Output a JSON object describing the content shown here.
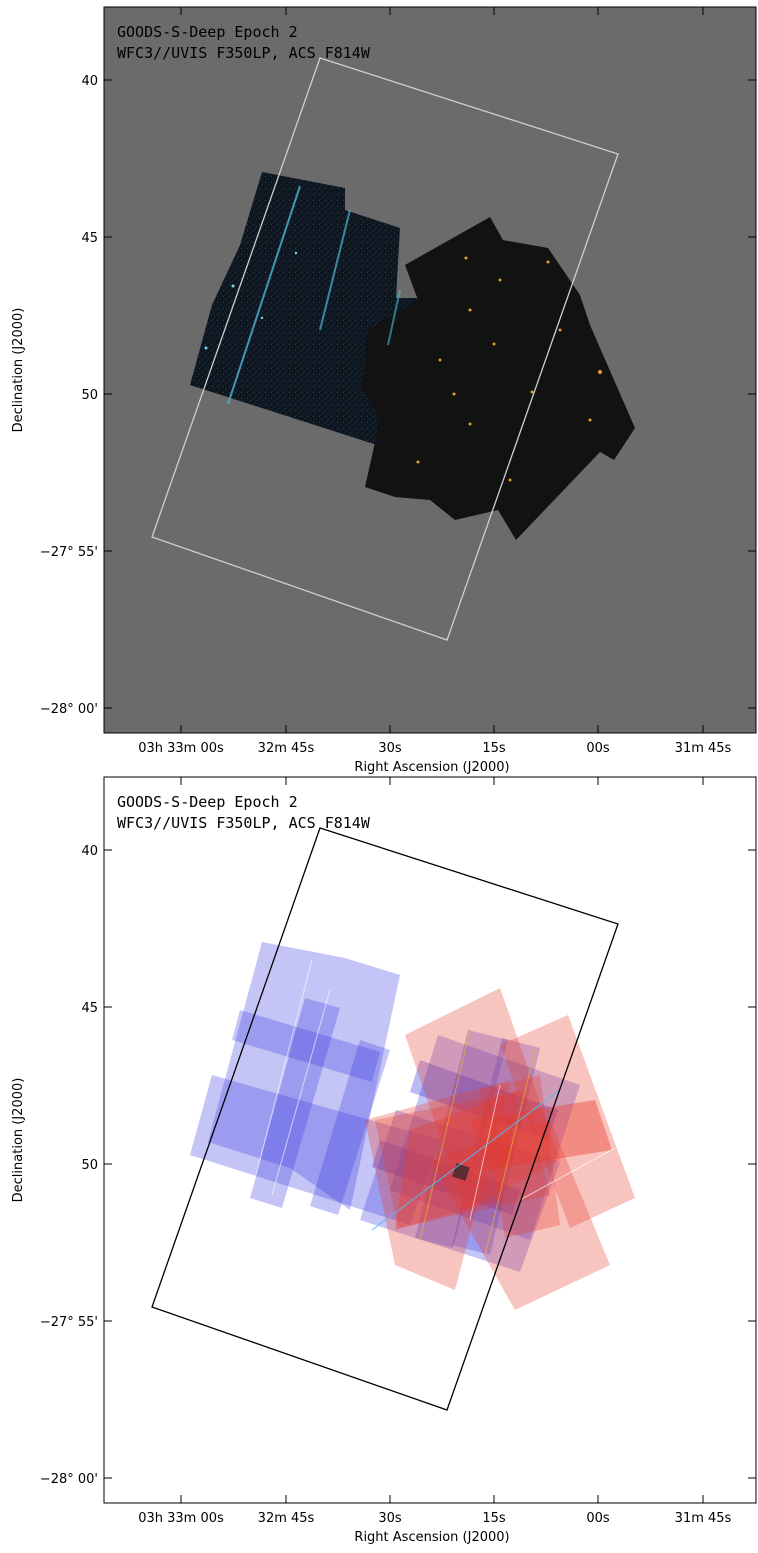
{
  "panels": [
    {
      "title_line1": "GOODS-S-Deep Epoch 2",
      "title_line2": "WFC3//UVIS F350LP, ACS F814W",
      "xlabel": "Right Ascension (J2000)",
      "ylabel": "Declination (J2000)",
      "y_ticks": [
        "40",
        "45",
        "50",
        "−27° 55'",
        "−28° 00'"
      ],
      "x_ticks": [
        "03h 33m 00s",
        "32m 45s",
        "30s",
        "15s",
        "00s",
        "31m 45s"
      ],
      "background": "#6b6b6b",
      "outline_color": "#cfcfcf",
      "content": "false-color composite image of exposures"
    },
    {
      "title_line1": "GOODS-S-Deep Epoch 2",
      "title_line2": "WFC3//UVIS F350LP, ACS F814W",
      "xlabel": "Right Ascension (J2000)",
      "ylabel": "Declination (J2000)",
      "y_ticks": [
        "40",
        "45",
        "50",
        "−27° 55'",
        "−28° 00'"
      ],
      "x_ticks": [
        "03h 33m 00s",
        "32m 45s",
        "30s",
        "15s",
        "00s",
        "31m 45s"
      ],
      "background": "#ffffff",
      "outline_color": "#000000",
      "content": "exposure footprint map",
      "footprint_colors": {
        "uvis": "#3a3ae0",
        "acs": "#e83a2a"
      }
    }
  ]
}
